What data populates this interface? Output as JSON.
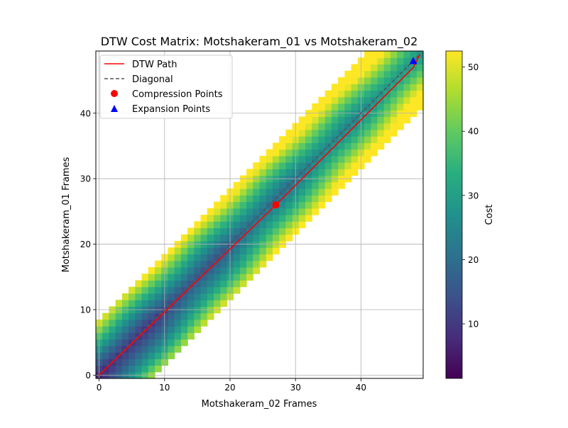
{
  "chart_data": {
    "type": "heatmap",
    "title": "DTW Cost Matrix: Motshakeram_01 vs Motshakeram_02",
    "xlabel": "Motshakeram_02 Frames",
    "ylabel": "Motshakeram_01 Frames",
    "xlim": [
      -0.5,
      49.5
    ],
    "ylim": [
      -0.5,
      49.5
    ],
    "x_ticks": [
      0,
      10,
      20,
      30,
      40
    ],
    "y_ticks": [
      0,
      10,
      20,
      30,
      40
    ],
    "grid": true,
    "legend_position": "upper-left",
    "band_half_width": 8,
    "legend": {
      "path_label": "DTW Path",
      "diagonal_label": "Diagonal",
      "compression_label": "Compression Points",
      "expansion_label": "Expansion Points"
    },
    "colorbar": {
      "label": "Cost",
      "min": 1.5,
      "max": 52.5,
      "ticks": [
        10,
        20,
        30,
        40,
        50
      ]
    },
    "dtw_path": [
      [
        0,
        0
      ],
      [
        27,
        26
      ],
      [
        48,
        47
      ],
      [
        49,
        49
      ]
    ],
    "diagonal": [
      [
        0,
        0
      ],
      [
        49,
        49
      ]
    ],
    "compression_points": [
      [
        27,
        26
      ]
    ],
    "expansion_points": [
      [
        48,
        48
      ]
    ],
    "colors": {
      "path": "#ff0000",
      "diagonal": "#555555",
      "compression": "#ff0000",
      "expansion": "#0000ff",
      "grid": "#b0b0b0"
    }
  }
}
